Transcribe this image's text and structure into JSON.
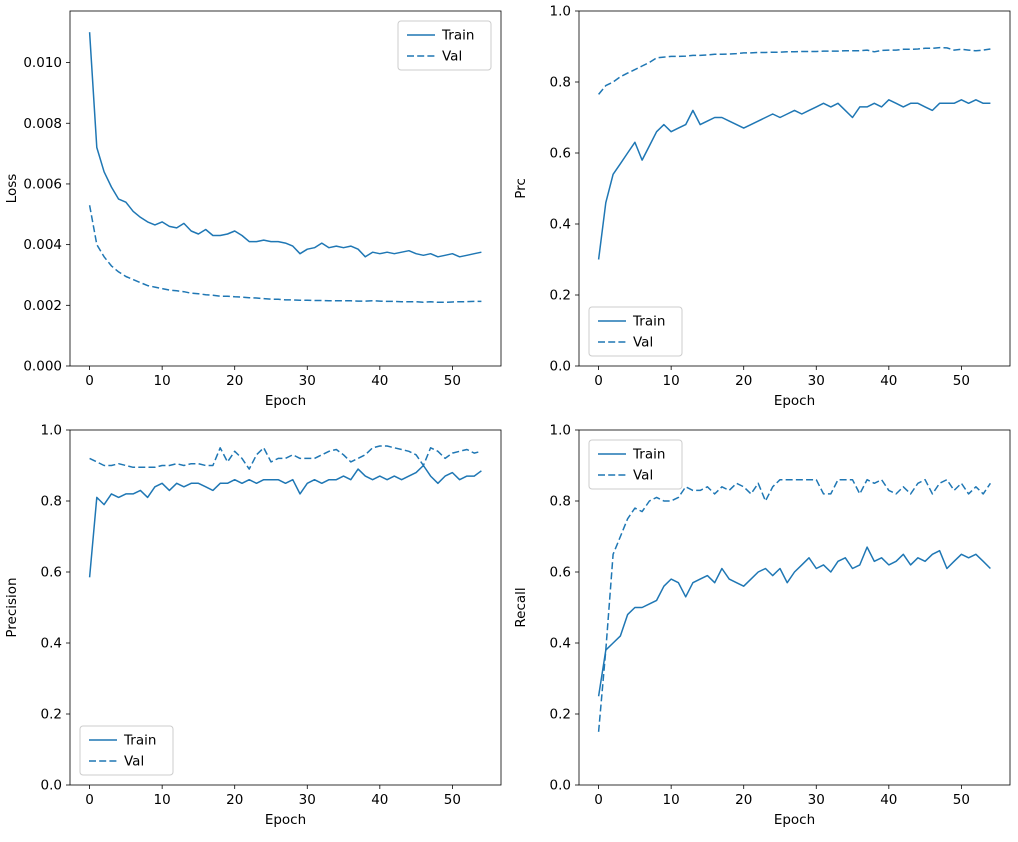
{
  "colors": {
    "line": "#1f77b4",
    "spine": "#000000",
    "legend_border": "#cccccc",
    "background": "#ffffff"
  },
  "epochs": [
    0,
    1,
    2,
    3,
    4,
    5,
    6,
    7,
    8,
    9,
    10,
    11,
    12,
    13,
    14,
    15,
    16,
    17,
    18,
    19,
    20,
    21,
    22,
    23,
    24,
    25,
    26,
    27,
    28,
    29,
    30,
    31,
    32,
    33,
    34,
    35,
    36,
    37,
    38,
    39,
    40,
    41,
    42,
    43,
    44,
    45,
    46,
    47,
    48,
    49,
    50,
    51,
    52,
    53,
    54
  ],
  "legend": {
    "train_label": "Train",
    "val_label": "Val"
  },
  "chart_data": [
    {
      "type": "line",
      "title": "",
      "xlabel": "Epoch",
      "ylabel": "Loss",
      "xlim": [
        -2.7,
        56.7
      ],
      "ylim": [
        0,
        0.0117
      ],
      "xticks": [
        0,
        10,
        20,
        30,
        40,
        50
      ],
      "xtick_labels": [
        "0",
        "10",
        "20",
        "30",
        "40",
        "50"
      ],
      "yticks": [
        0.0,
        0.002,
        0.004,
        0.006,
        0.008,
        0.01
      ],
      "ytick_labels": [
        "0.000",
        "0.002",
        "0.004",
        "0.006",
        "0.008",
        "0.010"
      ],
      "grid": false,
      "legend_position": "upper-right",
      "series": [
        {
          "name": "Train",
          "style": "solid",
          "values": [
            0.011,
            0.0072,
            0.0064,
            0.0059,
            0.0055,
            0.0054,
            0.0051,
            0.0049,
            0.00475,
            0.00465,
            0.00475,
            0.0046,
            0.00455,
            0.0047,
            0.00445,
            0.00435,
            0.0045,
            0.0043,
            0.0043,
            0.00435,
            0.00445,
            0.0043,
            0.0041,
            0.0041,
            0.00415,
            0.0041,
            0.0041,
            0.00405,
            0.00395,
            0.0037,
            0.00385,
            0.0039,
            0.00405,
            0.0039,
            0.00395,
            0.0039,
            0.00395,
            0.00385,
            0.0036,
            0.00375,
            0.0037,
            0.00375,
            0.0037,
            0.00375,
            0.0038,
            0.0037,
            0.00365,
            0.0037,
            0.0036,
            0.00365,
            0.0037,
            0.0036,
            0.00365,
            0.0037,
            0.00375
          ]
        },
        {
          "name": "Val",
          "style": "dashed",
          "values": [
            0.0053,
            0.004,
            0.0036,
            0.0033,
            0.0031,
            0.00295,
            0.00285,
            0.00275,
            0.00265,
            0.0026,
            0.00255,
            0.0025,
            0.00248,
            0.00245,
            0.0024,
            0.00238,
            0.00235,
            0.00233,
            0.0023,
            0.0023,
            0.00228,
            0.00227,
            0.00225,
            0.00224,
            0.00222,
            0.0022,
            0.0022,
            0.00218,
            0.00218,
            0.00217,
            0.00217,
            0.00216,
            0.00216,
            0.00215,
            0.00215,
            0.00215,
            0.00215,
            0.00214,
            0.00214,
            0.00215,
            0.00214,
            0.00213,
            0.00213,
            0.00212,
            0.00212,
            0.00212,
            0.0021,
            0.00212,
            0.0021,
            0.0021,
            0.00211,
            0.00212,
            0.00212,
            0.00213,
            0.00213
          ]
        }
      ]
    },
    {
      "type": "line",
      "title": "",
      "xlabel": "Epoch",
      "ylabel": "Prc",
      "xlim": [
        -2.7,
        56.7
      ],
      "ylim": [
        0.0,
        1.0
      ],
      "xticks": [
        0,
        10,
        20,
        30,
        40,
        50
      ],
      "xtick_labels": [
        "0",
        "10",
        "20",
        "30",
        "40",
        "50"
      ],
      "yticks": [
        0.0,
        0.2,
        0.4,
        0.6,
        0.8,
        1.0
      ],
      "ytick_labels": [
        "0.0",
        "0.2",
        "0.4",
        "0.6",
        "0.8",
        "1.0"
      ],
      "grid": false,
      "legend_position": "lower-left",
      "series": [
        {
          "name": "Train",
          "style": "solid",
          "values": [
            0.3,
            0.46,
            0.54,
            0.57,
            0.6,
            0.63,
            0.58,
            0.62,
            0.66,
            0.68,
            0.66,
            0.67,
            0.68,
            0.72,
            0.68,
            0.69,
            0.7,
            0.7,
            0.69,
            0.68,
            0.67,
            0.68,
            0.69,
            0.7,
            0.71,
            0.7,
            0.71,
            0.72,
            0.71,
            0.72,
            0.73,
            0.74,
            0.73,
            0.74,
            0.72,
            0.7,
            0.73,
            0.73,
            0.74,
            0.73,
            0.75,
            0.74,
            0.73,
            0.74,
            0.74,
            0.73,
            0.72,
            0.74,
            0.74,
            0.74,
            0.75,
            0.74,
            0.75,
            0.74,
            0.74
          ]
        },
        {
          "name": "Val",
          "style": "dashed",
          "values": [
            0.765,
            0.79,
            0.8,
            0.815,
            0.825,
            0.835,
            0.845,
            0.855,
            0.868,
            0.87,
            0.872,
            0.872,
            0.873,
            0.875,
            0.875,
            0.876,
            0.878,
            0.878,
            0.879,
            0.88,
            0.882,
            0.882,
            0.883,
            0.883,
            0.884,
            0.884,
            0.885,
            0.885,
            0.886,
            0.886,
            0.886,
            0.887,
            0.887,
            0.887,
            0.888,
            0.888,
            0.888,
            0.89,
            0.885,
            0.889,
            0.89,
            0.89,
            0.892,
            0.892,
            0.893,
            0.895,
            0.895,
            0.897,
            0.896,
            0.89,
            0.892,
            0.89,
            0.888,
            0.89,
            0.893
          ]
        }
      ]
    },
    {
      "type": "line",
      "title": "",
      "xlabel": "Epoch",
      "ylabel": "Precision",
      "xlim": [
        -2.7,
        56.7
      ],
      "ylim": [
        0.0,
        1.0
      ],
      "xticks": [
        0,
        10,
        20,
        30,
        40,
        50
      ],
      "xtick_labels": [
        "0",
        "10",
        "20",
        "30",
        "40",
        "50"
      ],
      "yticks": [
        0.0,
        0.2,
        0.4,
        0.6,
        0.8,
        1.0
      ],
      "ytick_labels": [
        "0.0",
        "0.2",
        "0.4",
        "0.6",
        "0.8",
        "1.0"
      ],
      "grid": false,
      "legend_position": "lower-left",
      "series": [
        {
          "name": "Train",
          "style": "solid",
          "values": [
            0.585,
            0.81,
            0.79,
            0.82,
            0.81,
            0.82,
            0.82,
            0.83,
            0.81,
            0.84,
            0.85,
            0.83,
            0.85,
            0.84,
            0.85,
            0.85,
            0.84,
            0.83,
            0.85,
            0.85,
            0.86,
            0.85,
            0.86,
            0.85,
            0.86,
            0.86,
            0.86,
            0.85,
            0.86,
            0.82,
            0.85,
            0.86,
            0.85,
            0.86,
            0.86,
            0.87,
            0.86,
            0.89,
            0.87,
            0.86,
            0.87,
            0.86,
            0.87,
            0.86,
            0.87,
            0.88,
            0.9,
            0.87,
            0.85,
            0.87,
            0.88,
            0.86,
            0.87,
            0.87,
            0.885
          ]
        },
        {
          "name": "Val",
          "style": "dashed",
          "values": [
            0.92,
            0.91,
            0.9,
            0.9,
            0.905,
            0.9,
            0.895,
            0.895,
            0.895,
            0.895,
            0.9,
            0.9,
            0.905,
            0.9,
            0.905,
            0.905,
            0.9,
            0.9,
            0.95,
            0.91,
            0.94,
            0.92,
            0.89,
            0.93,
            0.95,
            0.91,
            0.92,
            0.92,
            0.93,
            0.92,
            0.92,
            0.92,
            0.93,
            0.94,
            0.945,
            0.93,
            0.91,
            0.92,
            0.93,
            0.95,
            0.955,
            0.955,
            0.95,
            0.945,
            0.94,
            0.93,
            0.9,
            0.95,
            0.94,
            0.92,
            0.935,
            0.94,
            0.945,
            0.935,
            0.94
          ]
        }
      ]
    },
    {
      "type": "line",
      "title": "",
      "xlabel": "Epoch",
      "ylabel": "Recall",
      "xlim": [
        -2.7,
        56.7
      ],
      "ylim": [
        0.0,
        1.0
      ],
      "xticks": [
        0,
        10,
        20,
        30,
        40,
        50
      ],
      "xtick_labels": [
        "0",
        "10",
        "20",
        "30",
        "40",
        "50"
      ],
      "yticks": [
        0.0,
        0.2,
        0.4,
        0.6,
        0.8,
        1.0
      ],
      "ytick_labels": [
        "0.0",
        "0.2",
        "0.4",
        "0.6",
        "0.8",
        "1.0"
      ],
      "grid": false,
      "legend_position": "upper-left",
      "series": [
        {
          "name": "Train",
          "style": "solid",
          "values": [
            0.25,
            0.38,
            0.4,
            0.42,
            0.48,
            0.5,
            0.5,
            0.51,
            0.52,
            0.56,
            0.58,
            0.57,
            0.53,
            0.57,
            0.58,
            0.59,
            0.57,
            0.61,
            0.58,
            0.57,
            0.56,
            0.58,
            0.6,
            0.61,
            0.59,
            0.61,
            0.57,
            0.6,
            0.62,
            0.64,
            0.61,
            0.62,
            0.6,
            0.63,
            0.64,
            0.61,
            0.62,
            0.67,
            0.63,
            0.64,
            0.62,
            0.63,
            0.65,
            0.62,
            0.64,
            0.63,
            0.65,
            0.66,
            0.61,
            0.63,
            0.65,
            0.64,
            0.65,
            0.63,
            0.61
          ]
        },
        {
          "name": "Val",
          "style": "dashed",
          "values": [
            0.15,
            0.38,
            0.65,
            0.7,
            0.75,
            0.78,
            0.77,
            0.8,
            0.81,
            0.8,
            0.8,
            0.81,
            0.84,
            0.83,
            0.83,
            0.84,
            0.82,
            0.84,
            0.83,
            0.85,
            0.84,
            0.82,
            0.85,
            0.8,
            0.84,
            0.86,
            0.86,
            0.86,
            0.86,
            0.86,
            0.86,
            0.82,
            0.82,
            0.86,
            0.86,
            0.86,
            0.82,
            0.86,
            0.85,
            0.86,
            0.83,
            0.82,
            0.84,
            0.82,
            0.85,
            0.86,
            0.82,
            0.85,
            0.86,
            0.83,
            0.85,
            0.82,
            0.84,
            0.82,
            0.85
          ]
        }
      ]
    }
  ]
}
